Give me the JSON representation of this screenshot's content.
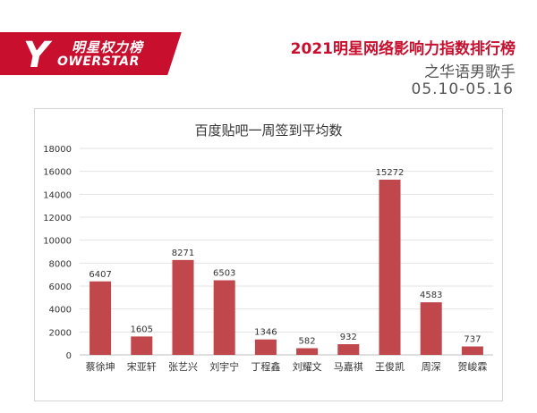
{
  "header": {
    "logo_mark": "Y",
    "logo_cn": "明星权力榜",
    "logo_en": "OWERSTAR",
    "title": "2021明星网络影响力指数排行榜",
    "subtitle": "之华语男歌手",
    "date_range": "05.10-05.16",
    "accent_color": "#c8102e"
  },
  "chart_data": {
    "type": "bar",
    "title": "百度贴吧一周签到平均数",
    "categories": [
      "蔡徐坤",
      "宋亚轩",
      "张艺兴",
      "刘宇宁",
      "丁程鑫",
      "刘耀文",
      "马嘉祺",
      "王俊凯",
      "周深",
      "贺峻霖"
    ],
    "values": [
      6407,
      1605,
      8271,
      6503,
      1346,
      582,
      932,
      15272,
      4583,
      737
    ],
    "data_labels": [
      "6407",
      "1605",
      "8271",
      "6503",
      "1346",
      "582",
      "932",
      "15272",
      "4583",
      "737"
    ],
    "y_ticks": [
      "0",
      "2000",
      "4000",
      "6000",
      "8000",
      "10000",
      "12000",
      "14000",
      "16000",
      "18000"
    ],
    "y_tick_values": [
      0,
      2000,
      4000,
      6000,
      8000,
      10000,
      12000,
      14000,
      16000,
      18000
    ],
    "ylim": [
      0,
      18000
    ],
    "xlabel": "",
    "ylabel": "",
    "grid": true,
    "bar_color": "#c0474b"
  }
}
